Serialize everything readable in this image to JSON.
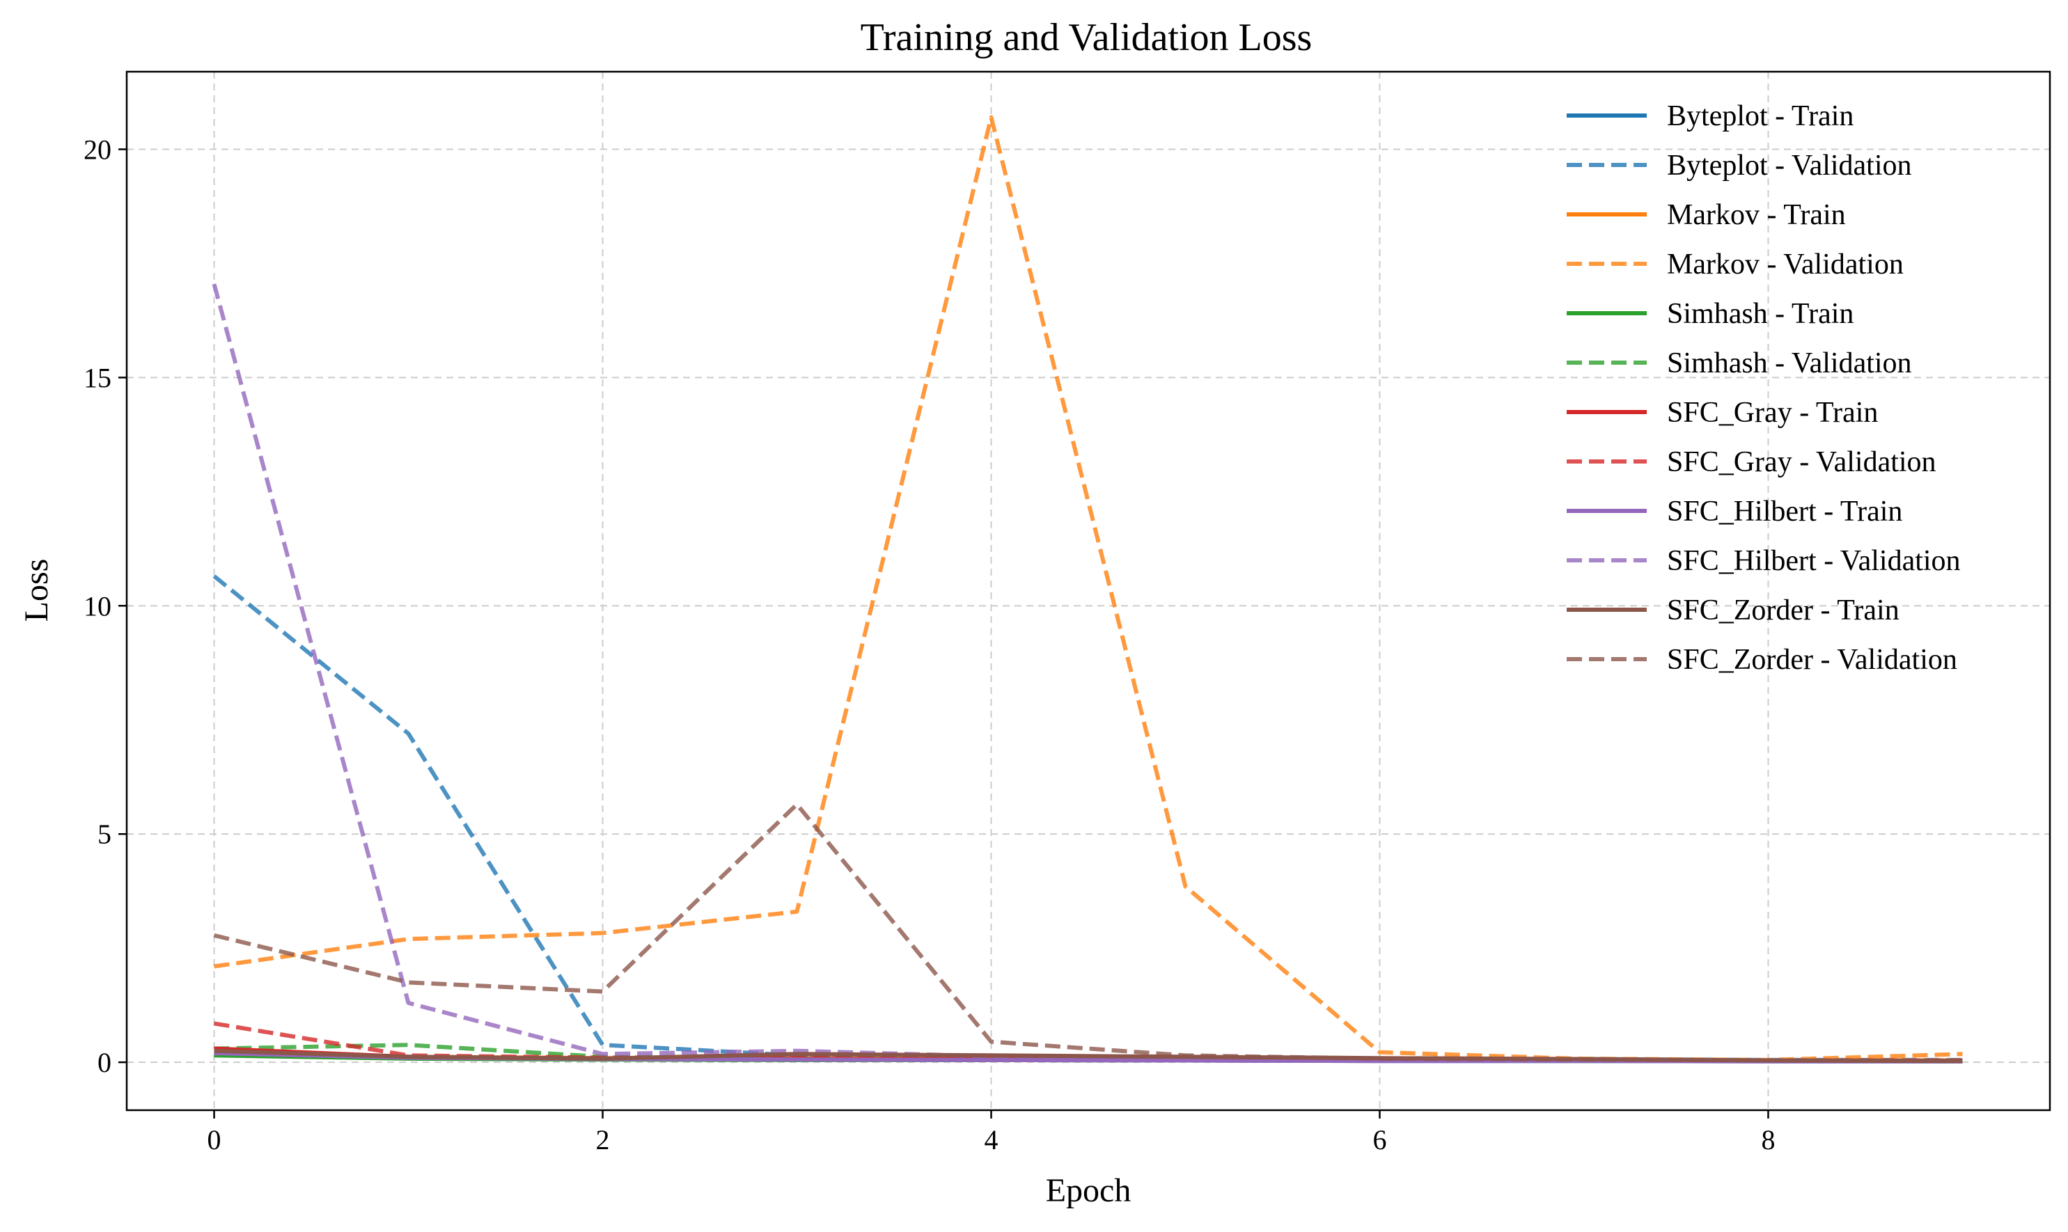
{
  "chart_data": {
    "type": "line",
    "title": "Training and Validation Loss",
    "xlabel": "Epoch",
    "ylabel": "Loss",
    "xlim": [
      -0.45,
      9.45
    ],
    "ylim": [
      -1.05,
      21.7
    ],
    "xticks": [
      0,
      2,
      4,
      6,
      8
    ],
    "yticks": [
      0,
      5,
      10,
      15,
      20
    ],
    "grid": true,
    "legend_position": "top-right",
    "x": [
      0,
      1,
      2,
      3,
      4,
      5,
      6,
      7,
      8,
      9
    ],
    "series": [
      {
        "name": "Byteplot - Train",
        "color": "#1f77b4",
        "style": "solid",
        "values": [
          0.22,
          0.1,
          0.07,
          0.06,
          0.05,
          0.04,
          0.03,
          0.03,
          0.02,
          0.02
        ]
      },
      {
        "name": "Byteplot - Validation",
        "color": "#1f77b4",
        "style": "dashed",
        "values": [
          10.65,
          7.2,
          0.38,
          0.15,
          0.13,
          0.1,
          0.08,
          0.07,
          0.05,
          0.05
        ]
      },
      {
        "name": "Markov - Train",
        "color": "#ff7f0e",
        "style": "solid",
        "values": [
          0.25,
          0.12,
          0.09,
          0.08,
          0.07,
          0.06,
          0.05,
          0.05,
          0.04,
          0.04
        ]
      },
      {
        "name": "Markov - Validation",
        "color": "#ff7f0e",
        "style": "dashed",
        "values": [
          2.1,
          2.7,
          2.83,
          3.3,
          20.7,
          3.85,
          0.22,
          0.08,
          0.05,
          0.18
        ]
      },
      {
        "name": "Simhash - Train",
        "color": "#2ca02c",
        "style": "solid",
        "values": [
          0.15,
          0.08,
          0.06,
          0.05,
          0.05,
          0.04,
          0.04,
          0.03,
          0.03,
          0.02
        ]
      },
      {
        "name": "Simhash - Validation",
        "color": "#2ca02c",
        "style": "dashed",
        "values": [
          0.3,
          0.38,
          0.12,
          0.1,
          0.09,
          0.08,
          0.06,
          0.05,
          0.04,
          0.03
        ]
      },
      {
        "name": "SFC_Gray - Train",
        "color": "#d62728",
        "style": "solid",
        "values": [
          0.3,
          0.12,
          0.08,
          0.07,
          0.06,
          0.05,
          0.04,
          0.04,
          0.03,
          0.03
        ]
      },
      {
        "name": "SFC_Gray - Validation",
        "color": "#d62728",
        "style": "dashed",
        "values": [
          0.85,
          0.15,
          0.1,
          0.12,
          0.1,
          0.08,
          0.06,
          0.05,
          0.04,
          0.04
        ]
      },
      {
        "name": "SFC_Hilbert - Train",
        "color": "#9467bd",
        "style": "solid",
        "values": [
          0.2,
          0.1,
          0.07,
          0.06,
          0.05,
          0.04,
          0.03,
          0.03,
          0.02,
          0.02
        ]
      },
      {
        "name": "SFC_Hilbert - Validation",
        "color": "#9467bd",
        "style": "dashed",
        "values": [
          17.05,
          1.3,
          0.18,
          0.25,
          0.13,
          0.08,
          0.05,
          0.04,
          0.03,
          0.02
        ]
      },
      {
        "name": "SFC_Zorder - Train",
        "color": "#8c564b",
        "style": "solid",
        "values": [
          0.25,
          0.12,
          0.08,
          0.18,
          0.15,
          0.12,
          0.09,
          0.07,
          0.04,
          0.03
        ]
      },
      {
        "name": "SFC_Zorder - Validation",
        "color": "#8c564b",
        "style": "dashed",
        "values": [
          2.78,
          1.75,
          1.55,
          5.65,
          0.45,
          0.15,
          0.08,
          0.06,
          0.04,
          0.03
        ]
      }
    ]
  }
}
